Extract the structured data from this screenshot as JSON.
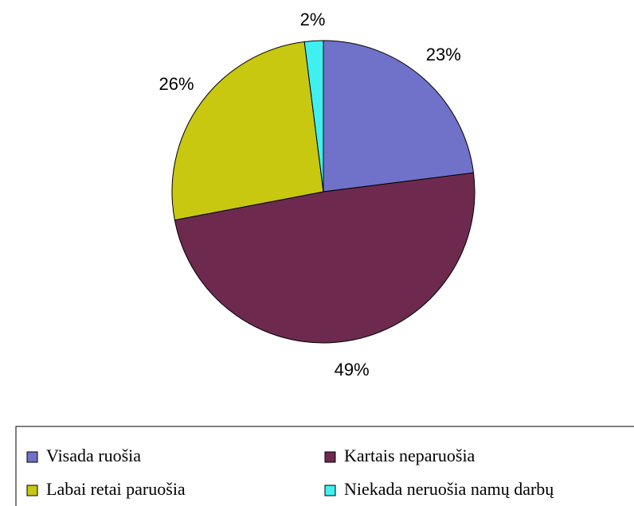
{
  "chart_data": {
    "type": "pie",
    "categories": [
      "Visada ruošia",
      "Kartais neparuošia",
      "Labai retai paruošia",
      "Niekada neruošia namų darbų"
    ],
    "values": [
      23,
      49,
      26,
      2
    ],
    "value_labels": [
      "23%",
      "49%",
      "26%",
      "2%"
    ],
    "colors": [
      "#6f72c8",
      "#6e2a4e",
      "#c8c810",
      "#40f0f0"
    ],
    "legend": "bottom"
  }
}
